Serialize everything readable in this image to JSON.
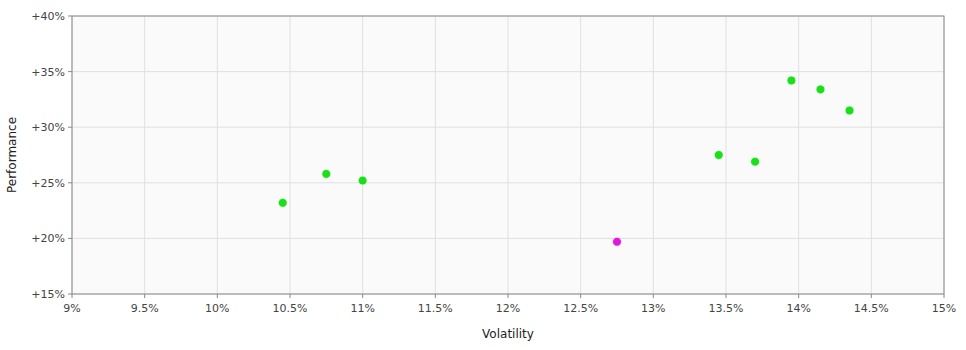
{
  "chart_data": {
    "type": "scatter",
    "xlabel": "Volatility",
    "ylabel": "Performance",
    "xlim": [
      0.09,
      0.15
    ],
    "ylim": [
      0.15,
      0.4
    ],
    "xticks": [
      {
        "value": 0.09,
        "label": "9%"
      },
      {
        "value": 0.095,
        "label": "9.5%"
      },
      {
        "value": 0.1,
        "label": "10%"
      },
      {
        "value": 0.105,
        "label": "10.5%"
      },
      {
        "value": 0.11,
        "label": "11%"
      },
      {
        "value": 0.115,
        "label": "11.5%"
      },
      {
        "value": 0.12,
        "label": "12%"
      },
      {
        "value": 0.125,
        "label": "12.5%"
      },
      {
        "value": 0.13,
        "label": "13%"
      },
      {
        "value": 0.135,
        "label": "13.5%"
      },
      {
        "value": 0.14,
        "label": "14%"
      },
      {
        "value": 0.145,
        "label": "14.5%"
      },
      {
        "value": 0.15,
        "label": "15%"
      }
    ],
    "yticks": [
      {
        "value": 0.15,
        "label": "+15%"
      },
      {
        "value": 0.2,
        "label": "+20%"
      },
      {
        "value": 0.25,
        "label": "+25%"
      },
      {
        "value": 0.3,
        "label": "+30%"
      },
      {
        "value": 0.35,
        "label": "+35%"
      },
      {
        "value": 0.4,
        "label": "+40%"
      }
    ],
    "grid": true,
    "series": [
      {
        "color": "#00dd00",
        "x": [
          0.1045,
          0.1075,
          0.11,
          0.1345,
          0.137,
          0.1395,
          0.1415,
          0.1435
        ],
        "values": [
          0.232,
          0.258,
          0.252,
          0.275,
          0.269,
          0.342,
          0.334,
          0.315
        ]
      },
      {
        "color": "#dd00dd",
        "x": [
          0.1275
        ],
        "values": [
          0.197
        ]
      }
    ]
  }
}
